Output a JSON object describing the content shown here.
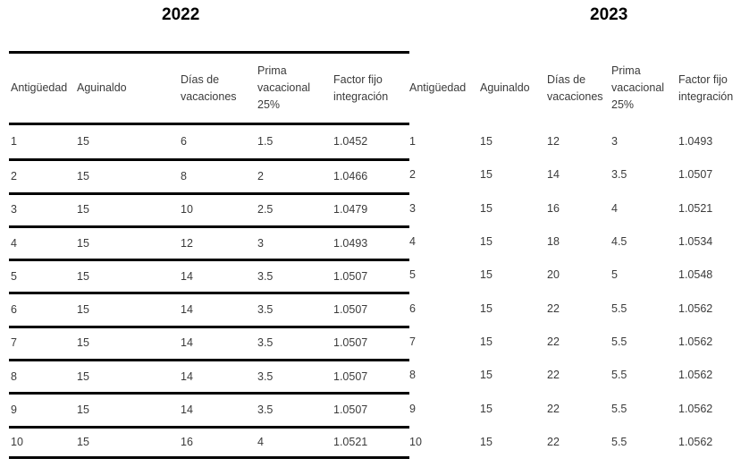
{
  "colors": {
    "border": "#000000",
    "text": "#3b3b3b",
    "title": "#000000",
    "background": "#ffffff"
  },
  "tables": [
    {
      "year": "2022",
      "columns": [
        "Antigüedad",
        "Aguinaldo",
        "Días de vacaciones",
        "Prima vacacional 25%",
        "Factor fijo integración"
      ],
      "rows": [
        [
          "1",
          "15",
          "6",
          "1.5",
          "1.0452"
        ],
        [
          "2",
          "15",
          "8",
          "2",
          "1.0466"
        ],
        [
          "3",
          "15",
          "10",
          "2.5",
          "1.0479"
        ],
        [
          "4",
          "15",
          "12",
          "3",
          "1.0493"
        ],
        [
          "5",
          "15",
          "14",
          "3.5",
          "1.0507"
        ],
        [
          "6",
          "15",
          "14",
          "3.5",
          "1.0507"
        ],
        [
          "7",
          "15",
          "14",
          "3.5",
          "1.0507"
        ],
        [
          "8",
          "15",
          "14",
          "3.5",
          "1.0507"
        ],
        [
          "9",
          "15",
          "14",
          "3.5",
          "1.0507"
        ],
        [
          "10",
          "15",
          "16",
          "4",
          "1.0521"
        ]
      ]
    },
    {
      "year": "2023",
      "columns": [
        "Antigüedad",
        "Aguinaldo",
        "Días de vacaciones",
        "Prima vacacional 25%",
        "Factor fijo integración"
      ],
      "rows": [
        [
          "1",
          "15",
          "12",
          "3",
          "1.0493"
        ],
        [
          "2",
          "15",
          "14",
          "3.5",
          "1.0507"
        ],
        [
          "3",
          "15",
          "16",
          "4",
          "1.0521"
        ],
        [
          "4",
          "15",
          "18",
          "4.5",
          "1.0534"
        ],
        [
          "5",
          "15",
          "20",
          "5",
          "1.0548"
        ],
        [
          "6",
          "15",
          "22",
          "5.5",
          "1.0562"
        ],
        [
          "7",
          "15",
          "22",
          "5.5",
          "1.0562"
        ],
        [
          "8",
          "15",
          "22",
          "5.5",
          "1.0562"
        ],
        [
          "9",
          "15",
          "22",
          "5.5",
          "1.0562"
        ],
        [
          "10",
          "15",
          "22",
          "5.5",
          "1.0562"
        ]
      ]
    }
  ]
}
